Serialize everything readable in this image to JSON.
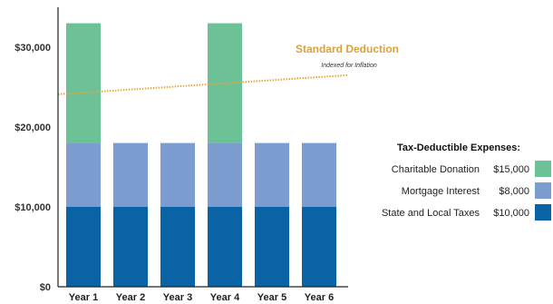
{
  "chart_data": {
    "type": "bar",
    "stacked": true,
    "categories": [
      "Year 1",
      "Year 2",
      "Year 3",
      "Year 4",
      "Year 5",
      "Year 6"
    ],
    "ylim": [
      0,
      35000
    ],
    "yticks": [
      0,
      10000,
      20000,
      30000
    ],
    "ytick_labels": [
      "$0",
      "$10,000",
      "$20,000",
      "$30,000"
    ],
    "series": [
      {
        "name": "State and Local Taxes",
        "amount_label": "$10,000",
        "color": "#0a63a4",
        "values": [
          10000,
          10000,
          10000,
          10000,
          10000,
          10000
        ]
      },
      {
        "name": "Mortgage Interest",
        "amount_label": "$8,000",
        "color": "#7c9cd0",
        "values": [
          8000,
          8000,
          8000,
          8000,
          8000,
          8000
        ]
      },
      {
        "name": "Charitable Donation",
        "amount_label": "$15,000",
        "color": "#6cc196",
        "values": [
          15000,
          0,
          0,
          15000,
          0,
          0
        ]
      }
    ],
    "legend": {
      "title": "Tax-Deductible Expenses:",
      "placement": "right"
    },
    "reference_line": {
      "label": "Standard Deduction",
      "sublabel": "Indexed for Inflation",
      "color": "#e3a83b",
      "style": "dotted",
      "y_start": 24100,
      "y_end": 26500
    }
  }
}
